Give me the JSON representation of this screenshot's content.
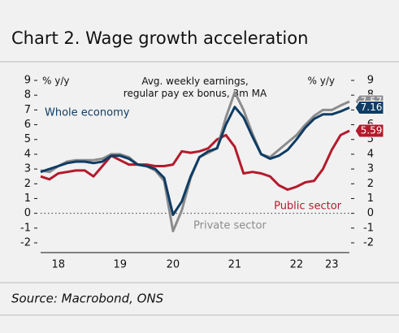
{
  "chart_data": {
    "type": "line",
    "title": "Chart 2. Wage growth acceleration",
    "subtitle": "Avg. weekly earnings, regular pay ex bonus, 3m MA",
    "y_label": "% y/y",
    "y2_label": "% y/y",
    "source": "Source: Macrobond, ONS",
    "categories": [
      null,
      null,
      "18",
      null,
      null,
      null,
      null,
      null,
      null,
      "19",
      null,
      null,
      null,
      null,
      null,
      "20",
      null,
      null,
      null,
      null,
      null,
      null,
      "21",
      null,
      null,
      null,
      null,
      null,
      null,
      "22",
      null,
      null,
      null,
      "23",
      null,
      null
    ],
    "series": [
      {
        "name": "Public sector",
        "color": "#b31b2c",
        "values": [
          2.5,
          2.3,
          2.7,
          2.8,
          2.9,
          2.9,
          2.5,
          3.2,
          3.9,
          3.6,
          3.3,
          3.3,
          3.3,
          3.2,
          3.2,
          3.3,
          4.2,
          4.1,
          4.2,
          4.4,
          5.0,
          5.3,
          4.5,
          2.7,
          2.8,
          2.7,
          2.5,
          1.9,
          1.6,
          1.8,
          2.1,
          2.2,
          3.0,
          4.3,
          5.3,
          5.59
        ]
      },
      {
        "name": "Private sector",
        "color": "#8c8c8c",
        "values": [
          2.9,
          2.8,
          3.2,
          3.5,
          3.6,
          3.6,
          3.6,
          3.7,
          4.0,
          4.0,
          3.8,
          3.3,
          3.2,
          2.9,
          2.2,
          -1.2,
          0.2,
          2.4,
          3.8,
          4.1,
          4.4,
          6.5,
          8.2,
          7.0,
          5.4,
          4.0,
          3.8,
          4.3,
          4.8,
          5.3,
          6.0,
          6.6,
          7.0,
          7.0,
          7.3,
          7.57
        ]
      },
      {
        "name": "Whole economy",
        "color": "#0e3c64",
        "values": [
          2.8,
          3.0,
          3.2,
          3.4,
          3.5,
          3.5,
          3.4,
          3.5,
          3.9,
          3.9,
          3.7,
          3.3,
          3.2,
          3.0,
          2.4,
          -0.1,
          0.8,
          2.5,
          3.8,
          4.2,
          4.4,
          6.0,
          7.2,
          6.5,
          5.2,
          4.0,
          3.7,
          3.9,
          4.3,
          5.0,
          5.8,
          6.4,
          6.7,
          6.7,
          6.9,
          7.16
        ]
      }
    ],
    "ylim": [
      -2,
      9
    ],
    "yticks": [
      -2,
      -1,
      0,
      1,
      2,
      3,
      4,
      5,
      6,
      7,
      8,
      9
    ],
    "y2lim": [
      -2,
      9
    ],
    "y2ticks": [
      -2,
      -1,
      0,
      1,
      2,
      3,
      4,
      5,
      6,
      7,
      8,
      9
    ],
    "zero_line": true
  }
}
